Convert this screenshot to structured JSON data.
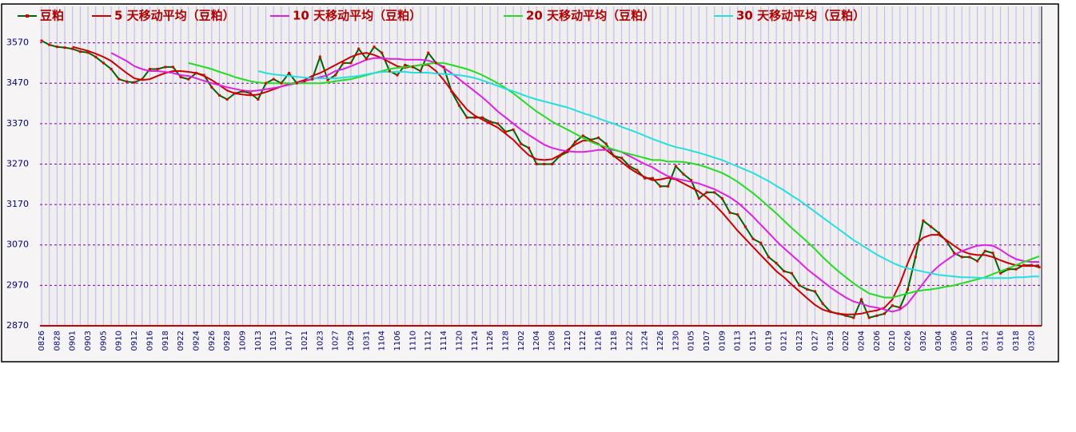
{
  "chart_data": {
    "type": "line",
    "categories": [
      "0826",
      null,
      "0828",
      null,
      "0901",
      null,
      "0903",
      null,
      "0905",
      null,
      "0910",
      null,
      "0912",
      null,
      "0916",
      null,
      "0918",
      null,
      "0922",
      null,
      "0924",
      null,
      "0926",
      null,
      "0928",
      null,
      "1009",
      null,
      "1013",
      null,
      "1015",
      null,
      "1017",
      null,
      "1021",
      null,
      "1023",
      null,
      "1027",
      null,
      "1029",
      null,
      "1031",
      null,
      "1104",
      null,
      "1106",
      null,
      "1110",
      null,
      "1112",
      null,
      "1114",
      null,
      "1120",
      null,
      "1124",
      null,
      "1126",
      null,
      "1128",
      null,
      "1202",
      null,
      "1204",
      null,
      "1208",
      null,
      "1210",
      null,
      "1212",
      null,
      "1216",
      null,
      "1218",
      null,
      "1222",
      null,
      "1224",
      null,
      "1226",
      null,
      "1230",
      null,
      "0105",
      null,
      "0107",
      null,
      "0109",
      null,
      "0113",
      null,
      "0115",
      null,
      "0119",
      null,
      "0121",
      null,
      "0123",
      null,
      "0127",
      null,
      "0129",
      null,
      "0202",
      null,
      "0204",
      null,
      "0206",
      null,
      "0210",
      null,
      "0226",
      null,
      "0302",
      null,
      "0304",
      null,
      "0306",
      null,
      "0310",
      null,
      "0312",
      null,
      "0316",
      null,
      "0318",
      null,
      "0320",
      null
    ],
    "series": [
      {
        "name": "豆粕",
        "color": "#006400",
        "marker_color": "#dd0000",
        "values": [
          3575,
          3565,
          3560,
          3558,
          3555,
          3548,
          3546,
          3535,
          3520,
          3505,
          3480,
          3474,
          3472,
          3480,
          3505,
          3505,
          3510,
          3510,
          3485,
          3480,
          3495,
          3490,
          3460,
          3440,
          3430,
          3445,
          3450,
          3445,
          3430,
          3470,
          3480,
          3470,
          3495,
          3470,
          3475,
          3480,
          3535,
          3478,
          3490,
          3520,
          3520,
          3555,
          3530,
          3560,
          3545,
          3500,
          3490,
          3515,
          3510,
          3500,
          3545,
          3520,
          3510,
          3450,
          3415,
          3385,
          3385,
          3385,
          3375,
          3370,
          3350,
          3355,
          3320,
          3310,
          3270,
          3270,
          3270,
          3290,
          3300,
          3325,
          3340,
          3330,
          3335,
          3320,
          3290,
          3285,
          3265,
          3255,
          3235,
          3235,
          3215,
          3215,
          3265,
          3245,
          3230,
          3185,
          3200,
          3200,
          3185,
          3150,
          3145,
          3115,
          3085,
          3075,
          3040,
          3025,
          3005,
          3000,
          2970,
          2960,
          2955,
          2925,
          2905,
          2900,
          2895,
          2890,
          2935,
          2890,
          2895,
          2900,
          2920,
          2915,
          2960,
          3040,
          3130,
          3115,
          3100,
          3080,
          3050,
          3040,
          3040,
          3030,
          3055,
          3050,
          3000,
          3010,
          3010,
          3020,
          3020,
          3015
        ]
      },
      {
        "name": "5 天移动平均（豆粕）",
        "color": "#cc0000",
        "values": [
          null,
          null,
          null,
          null,
          3560,
          3555,
          3550,
          3543,
          3535,
          3525,
          3510,
          3495,
          3482,
          3478,
          3480,
          3488,
          3495,
          3500,
          3500,
          3498,
          3495,
          3488,
          3478,
          3465,
          3452,
          3445,
          3442,
          3440,
          3442,
          3448,
          3455,
          3462,
          3468,
          3472,
          3478,
          3488,
          3495,
          3505,
          3515,
          3525,
          3535,
          3542,
          3545,
          3540,
          3532,
          3522,
          3512,
          3508,
          3512,
          3515,
          3515,
          3500,
          3478,
          3452,
          3428,
          3405,
          3390,
          3380,
          3370,
          3360,
          3345,
          3330,
          3310,
          3292,
          3282,
          3280,
          3282,
          3292,
          3305,
          3318,
          3328,
          3328,
          3320,
          3305,
          3290,
          3275,
          3260,
          3248,
          3238,
          3230,
          3232,
          3236,
          3232,
          3222,
          3212,
          3202,
          3188,
          3170,
          3150,
          3128,
          3105,
          3085,
          3065,
          3045,
          3025,
          3005,
          2990,
          2972,
          2955,
          2938,
          2922,
          2910,
          2904,
          2900,
          2898,
          2898,
          2900,
          2905,
          2908,
          2915,
          2935,
          2975,
          3025,
          3070,
          3088,
          3095,
          3095,
          3082,
          3068,
          3055,
          3048,
          3045,
          3045,
          3040,
          3032,
          3025,
          3020,
          3018,
          3018,
          3020
        ]
      },
      {
        "name": "10 天移动平均（豆粕）",
        "color": "#e020e0",
        "values": [
          null,
          null,
          null,
          null,
          null,
          null,
          null,
          null,
          null,
          3545,
          3535,
          3525,
          3512,
          3505,
          3500,
          3500,
          3498,
          3495,
          3490,
          3488,
          3482,
          3476,
          3470,
          3465,
          3460,
          3456,
          3452,
          3450,
          3452,
          3455,
          3458,
          3462,
          3466,
          3470,
          3475,
          3480,
          3485,
          3490,
          3500,
          3505,
          3512,
          3520,
          3528,
          3532,
          3532,
          3530,
          3530,
          3528,
          3528,
          3528,
          3526,
          3520,
          3508,
          3495,
          3480,
          3465,
          3450,
          3435,
          3418,
          3400,
          3385,
          3370,
          3355,
          3342,
          3330,
          3318,
          3310,
          3305,
          3302,
          3300,
          3300,
          3302,
          3305,
          3305,
          3305,
          3300,
          3290,
          3280,
          3270,
          3262,
          3250,
          3240,
          3234,
          3230,
          3226,
          3222,
          3215,
          3208,
          3198,
          3188,
          3175,
          3158,
          3140,
          3120,
          3100,
          3080,
          3062,
          3045,
          3028,
          3010,
          2995,
          2980,
          2965,
          2952,
          2940,
          2930,
          2925,
          2918,
          2915,
          2910,
          2905,
          2910,
          2925,
          2950,
          2975,
          3000,
          3018,
          3032,
          3045,
          3055,
          3062,
          3068,
          3070,
          3068,
          3058,
          3045,
          3035,
          3030,
          3028,
          3028
        ]
      },
      {
        "name": "20 天移动平均（豆粕）",
        "color": "#22dd22",
        "values": [
          null,
          null,
          null,
          null,
          null,
          null,
          null,
          null,
          null,
          null,
          null,
          null,
          null,
          null,
          null,
          null,
          null,
          null,
          null,
          3520,
          3515,
          3510,
          3505,
          3498,
          3492,
          3485,
          3480,
          3475,
          3472,
          3470,
          3470,
          3470,
          3470,
          3470,
          3470,
          3470,
          3470,
          3472,
          3475,
          3478,
          3480,
          3485,
          3490,
          3495,
          3500,
          3505,
          3508,
          3510,
          3512,
          3515,
          3518,
          3520,
          3520,
          3515,
          3510,
          3505,
          3498,
          3490,
          3480,
          3470,
          3458,
          3445,
          3430,
          3415,
          3400,
          3388,
          3375,
          3365,
          3355,
          3345,
          3335,
          3325,
          3318,
          3312,
          3306,
          3300,
          3295,
          3290,
          3285,
          3280,
          3280,
          3276,
          3276,
          3275,
          3272,
          3268,
          3262,
          3255,
          3248,
          3238,
          3226,
          3212,
          3198,
          3182,
          3165,
          3148,
          3130,
          3112,
          3095,
          3078,
          3060,
          3040,
          3022,
          3005,
          2990,
          2975,
          2962,
          2950,
          2945,
          2940,
          2940,
          2945,
          2950,
          2955,
          2958,
          2960,
          2963,
          2967,
          2970,
          2975,
          2980,
          2985,
          2990,
          2998,
          3005,
          3012,
          3020,
          3028,
          3035,
          3042
        ]
      },
      {
        "name": "30 天移动平均（豆粕）",
        "color": "#22e0e0",
        "values": [
          null,
          null,
          null,
          null,
          null,
          null,
          null,
          null,
          null,
          null,
          null,
          null,
          null,
          null,
          null,
          null,
          null,
          null,
          null,
          null,
          null,
          null,
          null,
          null,
          null,
          null,
          null,
          null,
          3500,
          3495,
          3492,
          3490,
          3488,
          3486,
          3484,
          3482,
          3482,
          3482,
          3482,
          3484,
          3486,
          3488,
          3492,
          3495,
          3498,
          3498,
          3498,
          3498,
          3496,
          3496,
          3496,
          3494,
          3493,
          3492,
          3490,
          3487,
          3483,
          3477,
          3470,
          3463,
          3456,
          3450,
          3443,
          3436,
          3430,
          3425,
          3420,
          3415,
          3410,
          3403,
          3396,
          3390,
          3383,
          3376,
          3370,
          3362,
          3355,
          3348,
          3340,
          3332,
          3325,
          3318,
          3312,
          3308,
          3303,
          3298,
          3292,
          3286,
          3280,
          3272,
          3264,
          3256,
          3248,
          3238,
          3228,
          3216,
          3205,
          3192,
          3180,
          3166,
          3152,
          3138,
          3124,
          3110,
          3096,
          3082,
          3070,
          3058,
          3046,
          3036,
          3026,
          3018,
          3012,
          3008,
          3004,
          3000,
          2996,
          2994,
          2992,
          2990,
          2990,
          2989,
          2988,
          2988,
          2988,
          2988,
          2990,
          2990,
          2992,
          2992
        ]
      }
    ],
    "ylim": [
      2870,
      3660
    ],
    "yticks": [
      2870,
      2970,
      3070,
      3170,
      3270,
      3370,
      3470,
      3570
    ],
    "grid": true
  }
}
